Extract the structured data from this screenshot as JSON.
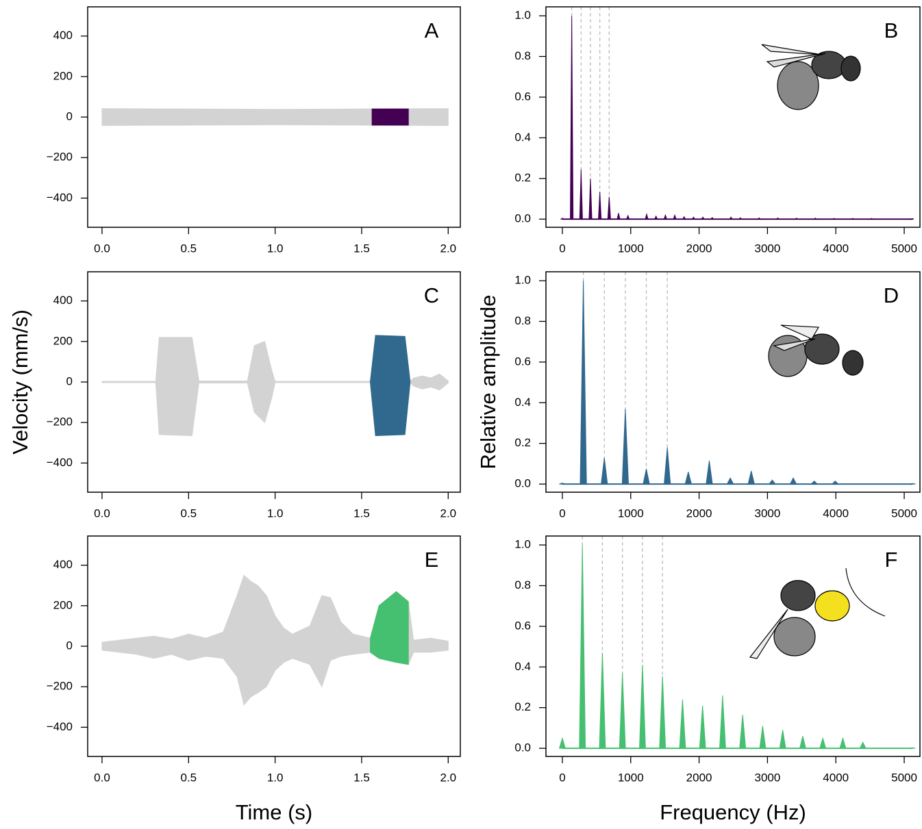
{
  "chart_data": [
    {
      "type": "area",
      "title": "A",
      "xlim": [
        -0.083,
        2.07
      ],
      "ylim": [
        -544,
        544
      ],
      "xticks": [
        {
          "value": 0,
          "label": "0.0"
        },
        {
          "value": 0.5,
          "label": "0.5"
        },
        {
          "value": 1,
          "label": "1.0"
        },
        {
          "value": 1.5,
          "label": "1.5"
        },
        {
          "value": 2,
          "label": "2.0"
        }
      ],
      "yticks": [
        {
          "value": -400,
          "label": "−400"
        },
        {
          "value": -200,
          "label": "−200"
        },
        0,
        200,
        400
      ],
      "series": [
        {
          "color": "#d3d3d3",
          "x": [
            0,
            0.5,
            1,
            1.5,
            2
          ],
          "upper": [
            42,
            40,
            38,
            40,
            42
          ],
          "lower": [
            -42,
            -40,
            -38,
            -40,
            -42
          ]
        },
        {
          "color": "#440154",
          "x": [
            1.56,
            1.77
          ],
          "upper": [
            40,
            40
          ],
          "lower": [
            -40,
            -40
          ]
        }
      ]
    },
    {
      "type": "spectrum",
      "title": "B",
      "xlim": [
        -240,
        5230
      ],
      "ylim": [
        -0.04,
        1.044
      ],
      "color": "#440154",
      "xticks": [
        0,
        1000,
        2000,
        3000,
        4000,
        5000
      ],
      "yticks": [
        {
          "value": 0,
          "label": "0.0"
        },
        {
          "value": 0.2,
          "label": "0.2"
        },
        {
          "value": 0.4,
          "label": "0.4"
        },
        {
          "value": 0.6,
          "label": "0.6"
        },
        {
          "value": 0.8,
          "label": "0.8"
        },
        {
          "value": 1,
          "label": "1.0"
        }
      ],
      "harmonics": [
        137,
        274,
        411,
        548,
        685
      ],
      "x": [
        0,
        137,
        274,
        411,
        548,
        685,
        822,
        959,
        1233,
        1370,
        1507,
        1644,
        1781,
        1918,
        2055,
        2192,
        2466,
        2603,
        2877,
        3151,
        3425,
        3699,
        3973,
        4247,
        4521,
        5120
      ],
      "values": [
        0.005,
        1.0,
        0.245,
        0.2,
        0.135,
        0.11,
        0.03,
        0.018,
        0.025,
        0.015,
        0.02,
        0.02,
        0.012,
        0.01,
        0.01,
        0.008,
        0.01,
        0.007,
        0.006,
        0.006,
        0.005,
        0.005,
        0.004,
        0.004,
        0.004,
        0.003
      ]
    },
    {
      "type": "area",
      "title": "C",
      "xlim": [
        -0.083,
        2.07
      ],
      "ylim": [
        -544,
        544
      ],
      "y_label": "Velocity (mm/s)",
      "xticks": [
        {
          "value": 0,
          "label": "0.0"
        },
        {
          "value": 0.5,
          "label": "0.5"
        },
        {
          "value": 1,
          "label": "1.0"
        },
        {
          "value": 1.5,
          "label": "1.5"
        },
        {
          "value": 2,
          "label": "2.0"
        }
      ],
      "yticks": [
        {
          "value": -400,
          "label": "−400"
        },
        {
          "value": -200,
          "label": "−200"
        },
        0,
        200,
        400
      ],
      "series": [
        {
          "color": "#d3d3d3",
          "x": [
            0,
            0.31,
            0.33,
            0.52,
            0.56,
            0.84,
            0.88,
            0.94,
            0.98,
            1.0,
            1.55,
            1.58,
            1.75,
            1.78,
            1.8,
            1.85,
            1.9,
            1.95,
            2.0
          ],
          "upper": [
            3,
            3,
            220,
            220,
            5,
            5,
            180,
            200,
            60,
            3,
            3,
            230,
            225,
            3,
            20,
            30,
            20,
            40,
            5
          ],
          "lower": [
            -3,
            -3,
            -260,
            -265,
            -5,
            -5,
            -150,
            -200,
            -80,
            -3,
            -3,
            -265,
            -260,
            -3,
            -20,
            -35,
            -25,
            -40,
            -5
          ]
        },
        {
          "color": "#31688e",
          "x": [
            1.55,
            1.58,
            1.75,
            1.78
          ],
          "upper": [
            3,
            230,
            225,
            3
          ],
          "lower": [
            -3,
            -265,
            -260,
            -3
          ]
        }
      ]
    },
    {
      "type": "spectrum",
      "title": "D",
      "xlim": [
        -240,
        5230
      ],
      "ylim": [
        -0.04,
        1.044
      ],
      "color": "#31688e",
      "y_label": "Relative amplitude",
      "xticks": [
        0,
        1000,
        2000,
        3000,
        4000,
        5000
      ],
      "yticks": [
        {
          "value": 0,
          "label": "0.0"
        },
        {
          "value": 0.2,
          "label": "0.2"
        },
        {
          "value": 0.4,
          "label": "0.4"
        },
        {
          "value": 0.6,
          "label": "0.6"
        },
        {
          "value": 0.8,
          "label": "0.8"
        },
        {
          "value": 1,
          "label": "1.0"
        }
      ],
      "harmonics": [
        307,
        614,
        921,
        1228,
        1535
      ],
      "x": [
        0,
        307,
        614,
        921,
        1228,
        1535,
        1842,
        2149,
        2456,
        2763,
        3070,
        3377,
        3684,
        3991,
        5120
      ],
      "values": [
        0.005,
        1.0,
        0.13,
        0.37,
        0.075,
        0.18,
        0.06,
        0.115,
        0.03,
        0.065,
        0.02,
        0.03,
        0.015,
        0.015,
        0.003
      ]
    },
    {
      "type": "area",
      "title": "E",
      "xlim": [
        -0.083,
        2.07
      ],
      "ylim": [
        -544,
        544
      ],
      "x_label": "Time (s)",
      "xticks": [
        {
          "value": 0,
          "label": "0.0"
        },
        {
          "value": 0.5,
          "label": "0.5"
        },
        {
          "value": 1,
          "label": "1.0"
        },
        {
          "value": 1.5,
          "label": "1.5"
        },
        {
          "value": 2,
          "label": "2.0"
        }
      ],
      "yticks": [
        {
          "value": -400,
          "label": "−400"
        },
        {
          "value": -200,
          "label": "−200"
        },
        0,
        200,
        400
      ],
      "series": [
        {
          "color": "#d3d3d3",
          "x": [
            0,
            0.1,
            0.2,
            0.3,
            0.4,
            0.5,
            0.6,
            0.7,
            0.78,
            0.82,
            0.86,
            0.9,
            0.95,
            1.0,
            1.05,
            1.1,
            1.2,
            1.27,
            1.32,
            1.38,
            1.45,
            1.55,
            1.6,
            1.7,
            1.77,
            1.8,
            1.9,
            2.0
          ],
          "upper": [
            20,
            30,
            40,
            50,
            35,
            60,
            40,
            70,
            250,
            350,
            320,
            300,
            250,
            150,
            90,
            60,
            100,
            250,
            240,
            120,
            60,
            40,
            200,
            270,
            220,
            30,
            40,
            25
          ],
          "lower": [
            -20,
            -30,
            -40,
            -60,
            -40,
            -70,
            -50,
            -60,
            -150,
            -290,
            -250,
            -230,
            -200,
            -120,
            -80,
            -60,
            -90,
            -200,
            -70,
            -50,
            -40,
            -30,
            -60,
            -80,
            -90,
            -30,
            -30,
            -20
          ]
        },
        {
          "color": "#45bf70",
          "x": [
            1.55,
            1.6,
            1.7,
            1.77
          ],
          "upper": [
            40,
            200,
            270,
            220
          ],
          "lower": [
            -30,
            -60,
            -80,
            -90
          ]
        }
      ]
    },
    {
      "type": "spectrum",
      "title": "F",
      "xlim": [
        -240,
        5230
      ],
      "ylim": [
        -0.04,
        1.044
      ],
      "color": "#45bf70",
      "x_label": "Frequency (Hz)",
      "xticks": [
        0,
        1000,
        2000,
        3000,
        4000,
        5000
      ],
      "yticks": [
        {
          "value": 0,
          "label": "0.0"
        },
        {
          "value": 0.2,
          "label": "0.2"
        },
        {
          "value": 0.4,
          "label": "0.4"
        },
        {
          "value": 0.6,
          "label": "0.6"
        },
        {
          "value": 0.8,
          "label": "0.8"
        },
        {
          "value": 1,
          "label": "1.0"
        }
      ],
      "harmonics": [
        293,
        586,
        879,
        1172,
        1465
      ],
      "x": [
        0,
        293,
        586,
        879,
        1172,
        1465,
        1758,
        2051,
        2344,
        2637,
        2930,
        3223,
        3516,
        3809,
        4102,
        4395,
        5120
      ],
      "values": [
        0.05,
        1.0,
        0.47,
        0.37,
        0.41,
        0.355,
        0.24,
        0.21,
        0.26,
        0.165,
        0.11,
        0.09,
        0.06,
        0.05,
        0.05,
        0.03,
        0.003
      ]
    }
  ]
}
